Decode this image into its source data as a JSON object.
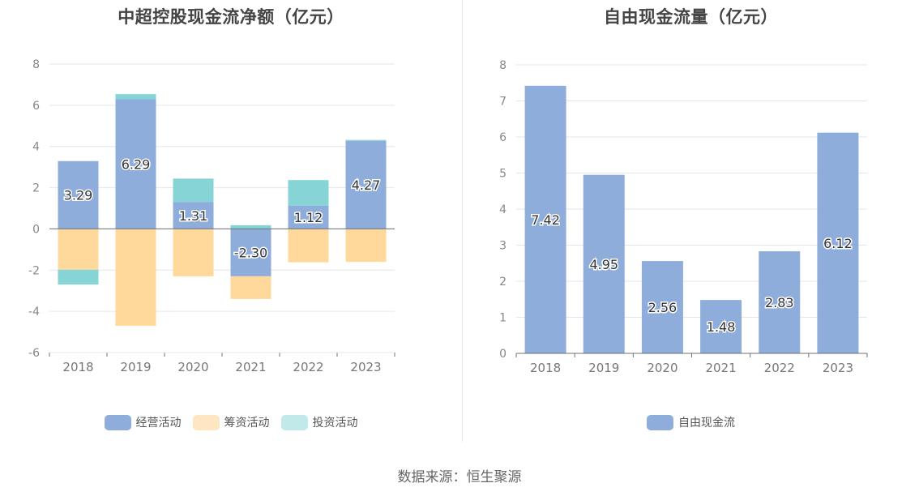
{
  "source": "数据来源：恒生聚源",
  "chart_data": [
    {
      "type": "bar",
      "stacked": true,
      "title": "中超控股现金流净额（亿元）",
      "categories": [
        "2018",
        "2019",
        "2020",
        "2021",
        "2022",
        "2023"
      ],
      "ylim": [
        -6,
        8
      ],
      "yticks": [
        -6,
        -4,
        -2,
        0,
        2,
        4,
        6,
        8
      ],
      "grid": true,
      "legend_position": "bottom",
      "series": [
        {
          "name": "经营活动",
          "color": "#8eaddb",
          "values": [
            3.29,
            6.29,
            1.31,
            -2.3,
            1.12,
            4.27
          ],
          "labels": [
            "3.29",
            "6.29",
            "1.31",
            "-2.30",
            "1.12",
            "4.27"
          ]
        },
        {
          "name": "筹资活动",
          "color": "#ffd99b",
          "values": [
            -1.98,
            -4.7,
            -2.3,
            -1.1,
            -1.62,
            -1.6
          ]
        },
        {
          "name": "投资活动",
          "color": "#87d4d6",
          "values": [
            -0.72,
            0.25,
            1.13,
            0.18,
            1.25,
            0.05
          ]
        }
      ],
      "legend": [
        {
          "name": "经营活动",
          "color": "#8eaddb"
        },
        {
          "name": "筹资活动",
          "color": "#ffe6c2"
        },
        {
          "name": "投资活动",
          "color": "#c2e9ea"
        }
      ]
    },
    {
      "type": "bar",
      "title": "自由现金流量（亿元）",
      "categories": [
        "2018",
        "2019",
        "2020",
        "2021",
        "2022",
        "2023"
      ],
      "ylim": [
        0,
        8
      ],
      "yticks": [
        0,
        1,
        2,
        3,
        4,
        5,
        6,
        7,
        8
      ],
      "grid": true,
      "legend_position": "bottom",
      "series": [
        {
          "name": "自由现金流",
          "color": "#8eaddb",
          "values": [
            7.42,
            4.95,
            2.56,
            1.48,
            2.83,
            6.12
          ],
          "labels": [
            "7.42",
            "4.95",
            "2.56",
            "1.48",
            "2.83",
            "6.12"
          ]
        }
      ],
      "legend": [
        {
          "name": "自由现金流",
          "color": "#8eaddb"
        }
      ]
    }
  ]
}
